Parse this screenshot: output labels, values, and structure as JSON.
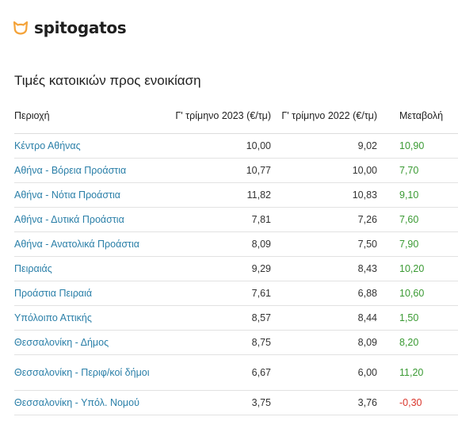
{
  "brand": {
    "name": "spitogatos",
    "icon": "cat-head-icon",
    "accent_color": "#f4a33a"
  },
  "title": "Τιμές κατοικιών προς ενοικίαση",
  "table": {
    "headers": {
      "area": "Περιοχή",
      "q3_2023": "Γ' τρίμηνο 2023 (€/τμ)",
      "q3_2022": "Γ' τρίμηνο 2022 (€/τμ)",
      "change": "Μεταβολή"
    },
    "rows": [
      {
        "area": "Κέντρο Αθήνας",
        "q3_2023": "10,00",
        "q3_2022": "9,02",
        "change": "10,90",
        "trend": "pos"
      },
      {
        "area": "Αθήνα - Βόρεια Προάστια",
        "q3_2023": "10,77",
        "q3_2022": "10,00",
        "change": "7,70",
        "trend": "pos"
      },
      {
        "area": "Αθήνα - Νότια Προάστια",
        "q3_2023": "11,82",
        "q3_2022": "10,83",
        "change": "9,10",
        "trend": "pos"
      },
      {
        "area": "Αθήνα - Δυτικά Προάστια",
        "q3_2023": "7,81",
        "q3_2022": "7,26",
        "change": "7,60",
        "trend": "pos"
      },
      {
        "area": "Αθήνα - Ανατολικά Προάστια",
        "q3_2023": "8,09",
        "q3_2022": "7,50",
        "change": "7,90",
        "trend": "pos"
      },
      {
        "area": "Πειραιάς",
        "q3_2023": "9,29",
        "q3_2022": "8,43",
        "change": "10,20",
        "trend": "pos"
      },
      {
        "area": "Προάστια Πειραιά",
        "q3_2023": "7,61",
        "q3_2022": "6,88",
        "change": "10,60",
        "trend": "pos"
      },
      {
        "area": "Υπόλοιπο Αττικής",
        "q3_2023": "8,57",
        "q3_2022": "8,44",
        "change": "1,50",
        "trend": "pos"
      },
      {
        "area": "Θεσσαλονίκη - Δήμος",
        "q3_2023": "8,75",
        "q3_2022": "8,09",
        "change": "8,20",
        "trend": "pos"
      },
      {
        "area": "Θεσσαλονίκη - Περιφ/κοί δήμοι",
        "q3_2023": "6,67",
        "q3_2022": "6,00",
        "change": "11,20",
        "trend": "pos"
      },
      {
        "area": "Θεσσαλονίκη - Υπόλ. Νομού",
        "q3_2023": "3,75",
        "q3_2022": "3,76",
        "change": "-0,30",
        "trend": "neg"
      }
    ]
  }
}
